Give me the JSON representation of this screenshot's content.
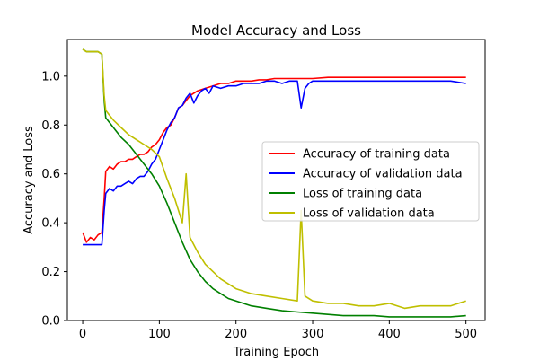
{
  "chart_data": {
    "type": "line",
    "title": "Model Accuracy and Loss",
    "xlabel": "Training Epoch",
    "ylabel": "Accuracy and Loss",
    "xlim": [
      -20,
      525
    ],
    "ylim": [
      0.0,
      1.15
    ],
    "xticks": [
      0,
      100,
      200,
      300,
      400,
      500
    ],
    "yticks": [
      0.0,
      0.2,
      0.4,
      0.6,
      0.8,
      1.0
    ],
    "ytick_labels": [
      "0.0",
      "0.2",
      "0.4",
      "0.6",
      "0.8",
      "1.0"
    ],
    "grid": false,
    "legend": "center-right",
    "series": [
      {
        "name": "Accuracy of training data",
        "color": "#ff0000",
        "x": [
          0,
          5,
          10,
          15,
          20,
          25,
          28,
          30,
          35,
          40,
          45,
          50,
          55,
          60,
          65,
          70,
          75,
          80,
          85,
          90,
          95,
          100,
          105,
          110,
          115,
          120,
          125,
          130,
          135,
          140,
          150,
          160,
          170,
          180,
          190,
          200,
          210,
          220,
          230,
          240,
          250,
          260,
          270,
          280,
          290,
          300,
          320,
          340,
          360,
          380,
          400,
          420,
          440,
          460,
          480,
          500
        ],
        "y": [
          0.36,
          0.32,
          0.34,
          0.33,
          0.35,
          0.36,
          0.5,
          0.61,
          0.63,
          0.62,
          0.64,
          0.65,
          0.65,
          0.66,
          0.66,
          0.67,
          0.68,
          0.68,
          0.69,
          0.71,
          0.72,
          0.74,
          0.77,
          0.79,
          0.8,
          0.83,
          0.87,
          0.88,
          0.9,
          0.92,
          0.94,
          0.95,
          0.96,
          0.97,
          0.97,
          0.98,
          0.98,
          0.98,
          0.985,
          0.985,
          0.99,
          0.99,
          0.99,
          0.99,
          0.99,
          0.99,
          0.995,
          0.995,
          0.995,
          0.995,
          0.995,
          0.995,
          0.995,
          0.995,
          0.995,
          0.995
        ]
      },
      {
        "name": "Accuracy of validation data",
        "color": "#0000ff",
        "x": [
          0,
          5,
          10,
          15,
          20,
          25,
          28,
          30,
          35,
          40,
          45,
          50,
          55,
          60,
          65,
          70,
          75,
          80,
          85,
          90,
          95,
          100,
          105,
          110,
          115,
          120,
          125,
          130,
          135,
          140,
          145,
          150,
          155,
          160,
          165,
          170,
          180,
          190,
          200,
          210,
          220,
          230,
          240,
          250,
          260,
          270,
          280,
          285,
          290,
          295,
          300,
          320,
          340,
          360,
          380,
          400,
          420,
          440,
          460,
          480,
          500
        ],
        "y": [
          0.31,
          0.31,
          0.31,
          0.31,
          0.31,
          0.31,
          0.45,
          0.52,
          0.54,
          0.53,
          0.55,
          0.55,
          0.56,
          0.57,
          0.56,
          0.58,
          0.59,
          0.59,
          0.61,
          0.64,
          0.66,
          0.7,
          0.74,
          0.78,
          0.81,
          0.83,
          0.87,
          0.88,
          0.91,
          0.93,
          0.89,
          0.92,
          0.94,
          0.95,
          0.93,
          0.96,
          0.95,
          0.96,
          0.96,
          0.97,
          0.97,
          0.97,
          0.98,
          0.98,
          0.97,
          0.98,
          0.98,
          0.87,
          0.95,
          0.97,
          0.98,
          0.98,
          0.98,
          0.98,
          0.98,
          0.98,
          0.98,
          0.98,
          0.98,
          0.98,
          0.97
        ]
      },
      {
        "name": "Loss of training data",
        "color": "#008000",
        "x": [
          0,
          5,
          10,
          15,
          20,
          25,
          28,
          30,
          35,
          40,
          50,
          60,
          70,
          80,
          90,
          100,
          110,
          120,
          130,
          140,
          150,
          160,
          170,
          180,
          190,
          200,
          220,
          240,
          260,
          280,
          300,
          320,
          340,
          360,
          380,
          400,
          420,
          440,
          460,
          480,
          500
        ],
        "y": [
          1.11,
          1.1,
          1.1,
          1.1,
          1.1,
          1.09,
          0.9,
          0.83,
          0.81,
          0.79,
          0.75,
          0.72,
          0.68,
          0.64,
          0.6,
          0.55,
          0.48,
          0.4,
          0.32,
          0.25,
          0.2,
          0.16,
          0.13,
          0.11,
          0.09,
          0.08,
          0.06,
          0.05,
          0.04,
          0.035,
          0.03,
          0.025,
          0.02,
          0.02,
          0.02,
          0.015,
          0.015,
          0.015,
          0.015,
          0.015,
          0.02
        ]
      },
      {
        "name": "Loss of validation data",
        "color": "#bfbf00",
        "x": [
          0,
          5,
          10,
          15,
          20,
          25,
          28,
          30,
          35,
          40,
          50,
          60,
          70,
          80,
          90,
          100,
          110,
          120,
          130,
          135,
          140,
          150,
          160,
          170,
          180,
          190,
          200,
          220,
          240,
          260,
          280,
          285,
          290,
          300,
          320,
          340,
          360,
          380,
          400,
          420,
          440,
          460,
          480,
          500
        ],
        "y": [
          1.11,
          1.1,
          1.1,
          1.1,
          1.1,
          1.09,
          0.92,
          0.86,
          0.84,
          0.82,
          0.79,
          0.76,
          0.74,
          0.72,
          0.7,
          0.67,
          0.58,
          0.5,
          0.4,
          0.6,
          0.34,
          0.28,
          0.23,
          0.2,
          0.17,
          0.15,
          0.13,
          0.11,
          0.1,
          0.09,
          0.08,
          0.45,
          0.1,
          0.08,
          0.07,
          0.07,
          0.06,
          0.06,
          0.07,
          0.05,
          0.06,
          0.06,
          0.06,
          0.08
        ]
      }
    ]
  }
}
